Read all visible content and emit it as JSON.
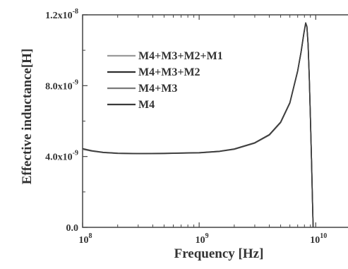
{
  "chart_data": {
    "type": "line",
    "title": "",
    "xlabel": "Frequency [Hz]",
    "ylabel": "Effective inductance[H]",
    "xscale": "log",
    "xlim": [
      100000000.0,
      20000000000.0
    ],
    "ylim": [
      0,
      1.2e-08
    ],
    "grid": false,
    "legend_placement": "center-left",
    "x_ticks": [
      {
        "value": 100000000.0,
        "base": "10",
        "exp": "8"
      },
      {
        "value": 1000000000.0,
        "base": "10",
        "exp": "9"
      },
      {
        "value": 10000000000.0,
        "base": "10",
        "exp": "10"
      }
    ],
    "y_ticks": [
      {
        "value": 0,
        "base": "0.0",
        "exp": ""
      },
      {
        "value": 4e-09,
        "base": "4.0x10",
        "exp": "-9"
      },
      {
        "value": 8e-09,
        "base": "8.0x10",
        "exp": "-9"
      },
      {
        "value": 1.2e-08,
        "base": "1.2x10",
        "exp": "-8"
      }
    ],
    "x": [
      100000000.0,
      120000000.0,
      150000000.0,
      200000000.0,
      300000000.0,
      500000000.0,
      1000000000.0,
      1500000000.0,
      2000000000.0,
      3000000000.0,
      4000000000.0,
      5000000000.0,
      6000000000.0,
      7000000000.0,
      7500000000.0,
      7900000000.0,
      8200000000.0,
      8400000000.0,
      8600000000.0,
      8800000000.0,
      9000000000.0,
      9200000000.0,
      9400000000.0,
      9500000000.0
    ],
    "series": [
      {
        "name": "M4+M3+M2+M1",
        "color": "#9a9a9a",
        "values": [
          4.4e-09,
          4.3e-09,
          4.22e-09,
          4.17e-09,
          4.16e-09,
          4.17e-09,
          4.2e-09,
          4.28e-09,
          4.4e-09,
          4.75e-09,
          5.2e-09,
          5.9e-09,
          7e-09,
          8.8e-09,
          9.9e-09,
          1.09e-08,
          1.15e-08,
          1.13e-08,
          1.03e-08,
          8.5e-09,
          6.2e-09,
          3.8e-09,
          1.2e-09,
          0
        ]
      },
      {
        "name": "M4+M3+M2",
        "color": "#2e2e2e",
        "values": [
          4.42e-09,
          4.31e-09,
          4.23e-09,
          4.18e-09,
          4.16e-09,
          4.17e-09,
          4.21e-09,
          4.29e-09,
          4.41e-09,
          4.76e-09,
          5.22e-09,
          5.92e-09,
          7.02e-09,
          8.82e-09,
          9.92e-09,
          1.092e-08,
          1.152e-08,
          1.132e-08,
          1.032e-08,
          8.5e-09,
          6.2e-09,
          3.8e-09,
          1.2e-09,
          0
        ]
      },
      {
        "name": "M4+M3",
        "color": "#7a7a7a",
        "values": [
          4.43e-09,
          4.32e-09,
          4.23e-09,
          4.18e-09,
          4.17e-09,
          4.18e-09,
          4.21e-09,
          4.3e-09,
          4.42e-09,
          4.77e-09,
          5.23e-09,
          5.93e-09,
          7.03e-09,
          8.83e-09,
          9.93e-09,
          1.093e-08,
          1.153e-08,
          1.133e-08,
          1.033e-08,
          8.5e-09,
          6.2e-09,
          3.8e-09,
          1.2e-09,
          0
        ]
      },
      {
        "name": "M4",
        "color": "#3a3a3a",
        "values": [
          4.45e-09,
          4.33e-09,
          4.24e-09,
          4.19e-09,
          4.17e-09,
          4.18e-09,
          4.22e-09,
          4.3e-09,
          4.43e-09,
          4.78e-09,
          5.24e-09,
          5.95e-09,
          7.05e-09,
          8.85e-09,
          9.95e-09,
          1.095e-08,
          1.155e-08,
          1.135e-08,
          1.035e-08,
          8.5e-09,
          6.2e-09,
          3.8e-09,
          1.2e-09,
          0
        ]
      }
    ]
  }
}
